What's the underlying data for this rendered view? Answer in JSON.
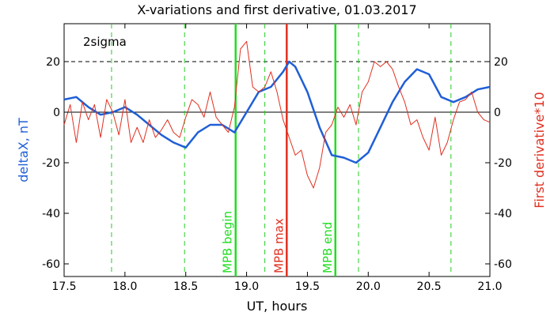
{
  "chart_data": {
    "type": "line",
    "title": "X-variations and first derivative, 01.03.2017",
    "xlabel": "UT, hours",
    "ylabel_left": "deltaX, nT",
    "ylabel_right": "First derivative*10",
    "xlim": [
      17.5,
      21.0
    ],
    "ylim": [
      -65,
      35
    ],
    "x_ticks": [
      "17.5",
      "18.0",
      "18.5",
      "19.0",
      "19.5",
      "20.0",
      "20.5",
      "21.0"
    ],
    "x_tick_values": [
      17.5,
      18.0,
      18.5,
      19.0,
      19.5,
      20.0,
      20.5,
      21.0
    ],
    "y_ticks": [
      "-60",
      "-40",
      "-20",
      "0",
      "20"
    ],
    "y_tick_values": [
      -60,
      -40,
      -20,
      0,
      20
    ],
    "sigma_label": "2sigma",
    "sigma_level": 20,
    "colors": {
      "deltaX": "#1f5fd6",
      "derivative": "#e03020",
      "markers_green": "#22dd22",
      "marker_red": "#e03020",
      "dashed_green": "#22cc22"
    },
    "dashed_lines_x": [
      17.89,
      18.49,
      19.15,
      19.92,
      20.68
    ],
    "markers": [
      {
        "label": "MPB begin",
        "x": 18.91,
        "color": "#22dd22"
      },
      {
        "label": "MPB max",
        "x": 19.33,
        "color": "#e03020"
      },
      {
        "label": "MPB end",
        "x": 19.73,
        "color": "#22dd22"
      }
    ],
    "series": [
      {
        "name": "deltaX",
        "axis": "left",
        "x": [
          17.5,
          17.6,
          17.7,
          17.8,
          17.9,
          18.0,
          18.1,
          18.2,
          18.3,
          18.4,
          18.5,
          18.6,
          18.7,
          18.8,
          18.9,
          19.0,
          19.1,
          19.2,
          19.3,
          19.35,
          19.4,
          19.5,
          19.6,
          19.7,
          19.8,
          19.9,
          20.0,
          20.1,
          20.2,
          20.3,
          20.4,
          20.5,
          20.6,
          20.7,
          20.8,
          20.9,
          21.0
        ],
        "values": [
          5,
          6,
          2,
          -1,
          0,
          2,
          -1,
          -5,
          -9,
          -12,
          -14,
          -8,
          -5,
          -5,
          -8,
          0,
          8,
          10,
          16,
          20,
          18,
          8,
          -6,
          -17,
          -18,
          -20,
          -16,
          -6,
          4,
          12,
          17,
          15,
          6,
          4,
          6,
          9,
          10
        ]
      },
      {
        "name": "derivative",
        "axis": "right",
        "x": [
          17.5,
          17.55,
          17.6,
          17.65,
          17.7,
          17.75,
          17.8,
          17.85,
          17.9,
          17.95,
          18.0,
          18.05,
          18.1,
          18.15,
          18.2,
          18.25,
          18.3,
          18.35,
          18.4,
          18.45,
          18.5,
          18.55,
          18.6,
          18.65,
          18.7,
          18.75,
          18.8,
          18.85,
          18.9,
          18.95,
          19.0,
          19.05,
          19.1,
          19.15,
          19.2,
          19.25,
          19.3,
          19.35,
          19.4,
          19.45,
          19.5,
          19.55,
          19.6,
          19.65,
          19.7,
          19.75,
          19.8,
          19.85,
          19.9,
          19.95,
          20.0,
          20.05,
          20.1,
          20.15,
          20.2,
          20.25,
          20.3,
          20.35,
          20.4,
          20.45,
          20.5,
          20.55,
          20.6,
          20.65,
          20.7,
          20.75,
          20.8,
          20.85,
          20.9,
          20.95,
          21.0
        ],
        "values": [
          -5,
          3,
          -12,
          4,
          -3,
          3,
          -10,
          5,
          0,
          -9,
          5,
          -12,
          -6,
          -12,
          -3,
          -10,
          -7,
          -3,
          -8,
          -10,
          -2,
          5,
          3,
          -2,
          8,
          -2,
          -5,
          -8,
          2,
          25,
          28,
          10,
          8,
          10,
          16,
          8,
          -3,
          -10,
          -17,
          -15,
          -25,
          -30,
          -22,
          -8,
          -5,
          2,
          -2,
          3,
          -5,
          8,
          12,
          20,
          18,
          20,
          17,
          10,
          4,
          -5,
          -3,
          -10,
          -15,
          -2,
          -17,
          -12,
          -3,
          4,
          5,
          8,
          0,
          -3,
          -4
        ]
      }
    ]
  }
}
